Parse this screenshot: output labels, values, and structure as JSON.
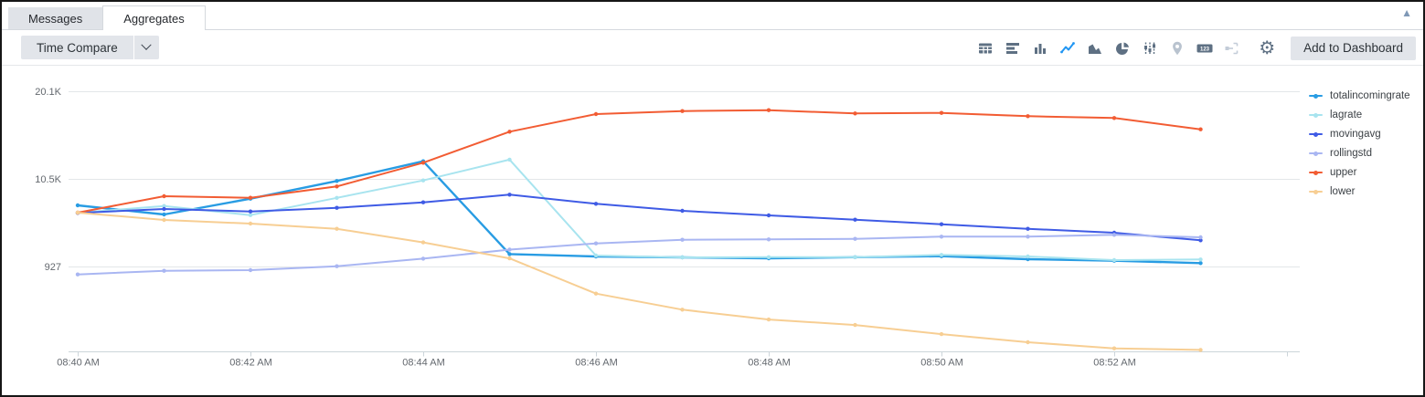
{
  "tabs": [
    {
      "label": "Messages",
      "active": false
    },
    {
      "label": "Aggregates",
      "active": true
    }
  ],
  "toolbar": {
    "time_compare_label": "Time Compare",
    "add_to_dashboard_label": "Add to Dashboard",
    "icons": [
      {
        "name": "table-icon",
        "state": "normal"
      },
      {
        "name": "bar-chart-horizontal-icon",
        "state": "normal"
      },
      {
        "name": "bar-chart-vertical-icon",
        "state": "normal"
      },
      {
        "name": "line-chart-icon",
        "state": "active"
      },
      {
        "name": "area-chart-icon",
        "state": "normal"
      },
      {
        "name": "pie-chart-icon",
        "state": "normal"
      },
      {
        "name": "sliders-icon",
        "state": "normal"
      },
      {
        "name": "map-pin-icon",
        "state": "disabled"
      },
      {
        "name": "number-badge-icon",
        "state": "normal",
        "text": "123"
      },
      {
        "name": "flow-icon",
        "state": "disabled"
      },
      {
        "name": "gear-icon",
        "state": "normal",
        "glyph": "⚙"
      }
    ]
  },
  "colors": {
    "accent_blue": "#2196F3",
    "icon_gray": "#5E7083",
    "icon_disabled": "#B9C3CF",
    "button_bg": "#E2E5EA",
    "gridline": "#E3E6E9",
    "axis_line": "#CCD5DA"
  },
  "chart_data": {
    "type": "line",
    "x": [
      "08:40",
      "08:41",
      "08:42",
      "08:43",
      "08:44",
      "08:45",
      "08:46",
      "08:47",
      "08:48",
      "08:49",
      "08:50",
      "08:51",
      "08:52",
      "08:53"
    ],
    "x_tick_labels": [
      "08:40 AM",
      "08:42 AM",
      "08:44 AM",
      "08:46 AM",
      "08:48 AM",
      "08:50 AM",
      "08:52 AM"
    ],
    "y_axis": [
      {
        "label": "20.1K",
        "value": 20100
      },
      {
        "label": "10.5K",
        "value": 10500
      },
      {
        "label": "927",
        "value": 927
      }
    ],
    "grid": true,
    "legend_position": "right",
    "series": [
      {
        "name": "totalincomingrate",
        "color": "#289CE3",
        "width": 2.4,
        "values": [
          7620,
          6620,
          8350,
          10280,
          12440,
          2290,
          2030,
          1930,
          1830,
          1950,
          2060,
          1730,
          1560,
          1300
        ]
      },
      {
        "name": "lagrate",
        "color": "#A8E4EF",
        "width": 2,
        "values": [
          6800,
          7550,
          6550,
          8440,
          10340,
          12620,
          2130,
          1930,
          1950,
          1950,
          2200,
          2030,
          1630,
          1700
        ]
      },
      {
        "name": "movingavg",
        "color": "#3F5BE5",
        "width": 2,
        "values": [
          6790,
          7220,
          6950,
          7350,
          7950,
          8790,
          7790,
          7020,
          6520,
          6050,
          5550,
          5050,
          4620,
          3790
        ]
      },
      {
        "name": "rollingstd",
        "color": "#A9B6F2",
        "width": 2,
        "values": [
          60,
          460,
          530,
          960,
          1790,
          2770,
          3450,
          3850,
          3890,
          3950,
          4190,
          4190,
          4390,
          4120
        ]
      },
      {
        "name": "upper",
        "color": "#F25C33",
        "width": 2,
        "values": [
          6820,
          8620,
          8450,
          9680,
          12280,
          15680,
          17600,
          17930,
          18030,
          17670,
          17730,
          17370,
          17170,
          15940
        ]
      },
      {
        "name": "lower",
        "color": "#F7CE93",
        "width": 2,
        "values": [
          6820,
          6020,
          5620,
          5050,
          3560,
          1820,
          -2040,
          -3800,
          -4870,
          -5470,
          -6470,
          -7360,
          -8030,
          -8200
        ]
      }
    ]
  }
}
